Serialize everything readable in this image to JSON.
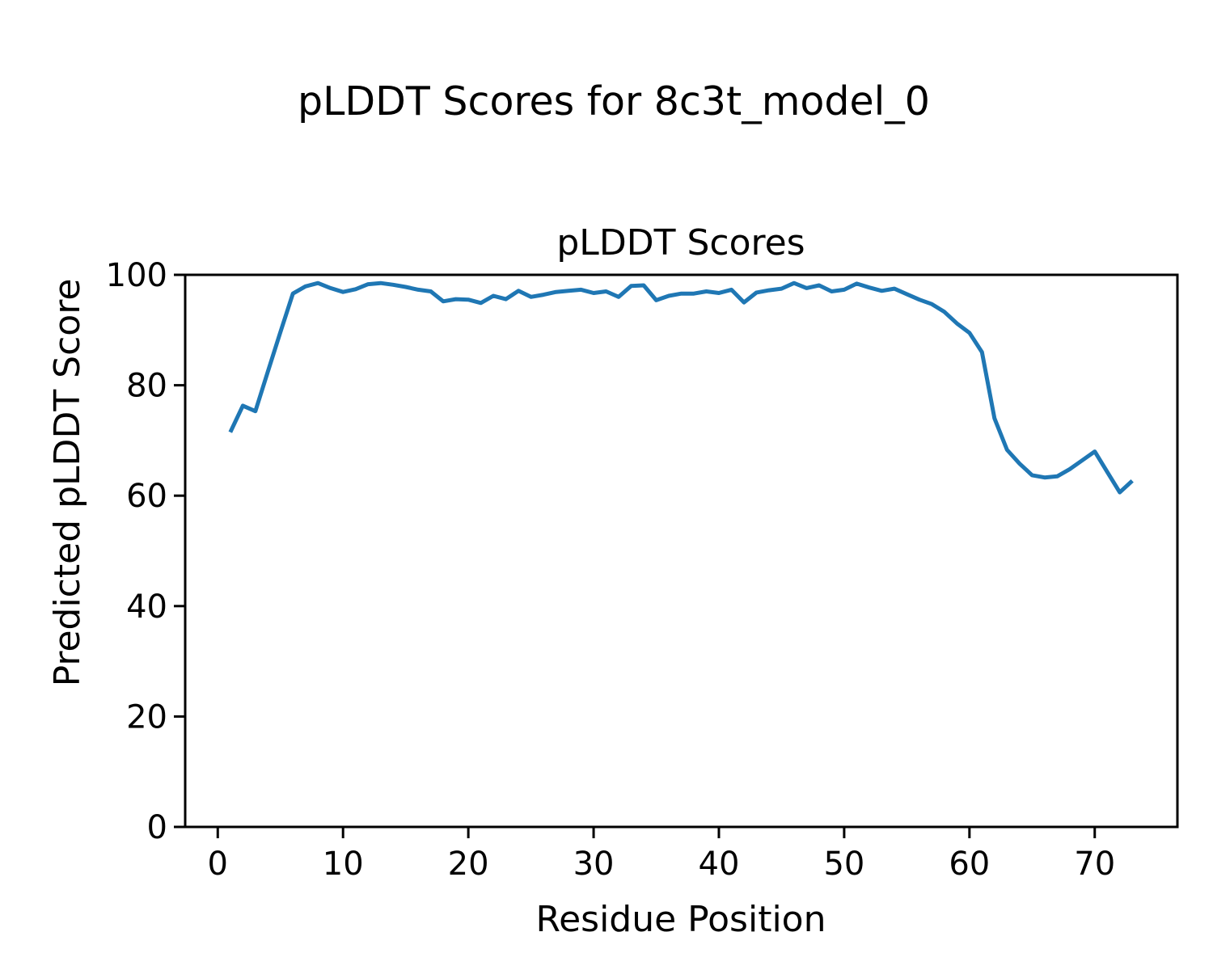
{
  "figure": {
    "suptitle": "pLDDT Scores for 8c3t_model_0"
  },
  "chart_data": {
    "type": "line",
    "title": "pLDDT Scores",
    "xlabel": "Residue Position",
    "ylabel": "Predicted pLDDT Score",
    "series_name": "pLDDT",
    "x": [
      1,
      2,
      3,
      4,
      5,
      6,
      7,
      8,
      9,
      10,
      11,
      12,
      13,
      14,
      15,
      16,
      17,
      18,
      19,
      20,
      21,
      22,
      23,
      24,
      25,
      26,
      27,
      28,
      29,
      30,
      31,
      32,
      33,
      34,
      35,
      36,
      37,
      38,
      39,
      40,
      41,
      42,
      43,
      44,
      45,
      46,
      47,
      48,
      49,
      50,
      51,
      52,
      53,
      54,
      55,
      56,
      57,
      58,
      59,
      60,
      61,
      62,
      63,
      64,
      65,
      66,
      67,
      68,
      69,
      70,
      71,
      72,
      73
    ],
    "values": [
      71.5,
      76.3,
      75.3,
      82.5,
      89.6,
      96.6,
      97.9,
      98.5,
      97.6,
      96.9,
      97.4,
      98.3,
      98.5,
      98.2,
      97.8,
      97.3,
      97.0,
      95.2,
      95.6,
      95.5,
      94.9,
      96.2,
      95.6,
      97.1,
      96.0,
      96.4,
      96.9,
      97.1,
      97.3,
      96.7,
      97.0,
      96.0,
      98.0,
      98.1,
      95.4,
      96.2,
      96.6,
      96.6,
      97.0,
      96.7,
      97.3,
      95.0,
      96.8,
      97.2,
      97.5,
      98.5,
      97.6,
      98.1,
      97.0,
      97.3,
      98.4,
      97.7,
      97.1,
      97.5,
      96.5,
      95.5,
      94.7,
      93.3,
      91.2,
      89.5,
      86.0,
      74.0,
      68.3,
      65.8,
      63.7,
      63.3,
      63.5,
      64.8,
      66.4,
      68.0,
      64.3,
      60.6,
      62.7
    ],
    "xlim": [
      -2.6,
      76.6
    ],
    "ylim": [
      0,
      100
    ],
    "xticks": [
      0,
      10,
      20,
      30,
      40,
      50,
      60,
      70
    ],
    "yticks": [
      0,
      20,
      40,
      60,
      80,
      100
    ],
    "grid": false,
    "legend": null,
    "colors": {
      "line": "#1f77b4",
      "text": "#000000",
      "spine": "#000000",
      "background": "#ffffff"
    }
  }
}
